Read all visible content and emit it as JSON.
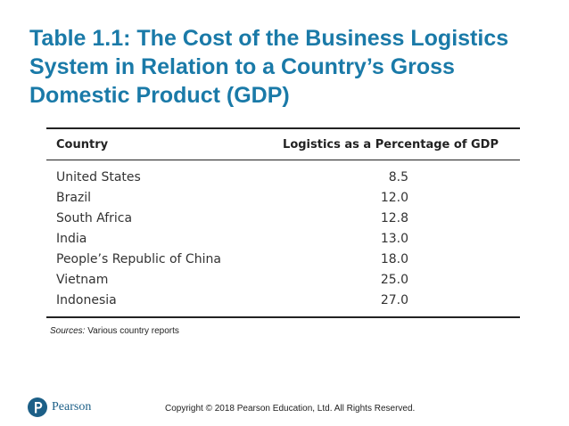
{
  "slide": {
    "title": "Table 1.1: The Cost of the Business Logistics System in Relation to a Country’s Gross Domestic Product (GDP)"
  },
  "table": {
    "headers": [
      "Country",
      "Logistics as a Percentage of GDP"
    ],
    "rows": [
      {
        "country": "United States",
        "value": "8.5"
      },
      {
        "country": "Brazil",
        "value": "12.0"
      },
      {
        "country": "South Africa",
        "value": "12.8"
      },
      {
        "country": "India",
        "value": "13.0"
      },
      {
        "country": "People’s Republic of China",
        "value": "18.0"
      },
      {
        "country": "Vietnam",
        "value": "25.0"
      },
      {
        "country": "Indonesia",
        "value": "27.0"
      }
    ]
  },
  "sources": {
    "label": "Sources:",
    "text": "Various country reports"
  },
  "footer": {
    "logo_text": "Pearson",
    "logo_icon": "pearson-p-logo",
    "copyright": "Copyright © 2018 Pearson Education, Ltd. All Rights Reserved."
  },
  "colors": {
    "title": "#1a7aa8",
    "brand": "#1c5f87"
  }
}
